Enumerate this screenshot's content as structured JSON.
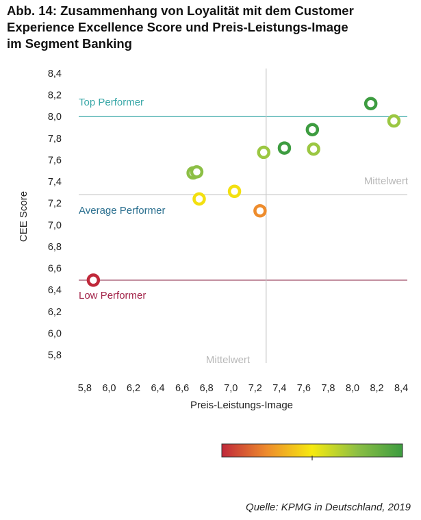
{
  "title_lines": [
    "Abb. 14: Zusammenhang von Loyalität mit dem Customer",
    "Experience Excellence Score und Preis-Leistungs-Image",
    "im Segment Banking"
  ],
  "source": "Quelle: KPMG in Deutschland, 2019",
  "chart_data": {
    "type": "scatter",
    "xlabel": "Preis-Leistungs-Image",
    "ylabel": "CEE Score",
    "xlim": [
      5.75,
      8.45
    ],
    "ylim": [
      5.8,
      8.4
    ],
    "x_ticks": [
      "5,8",
      "6,0",
      "6,2",
      "6,4",
      "6,6",
      "6,8",
      "7,0",
      "7,2",
      "7,4",
      "7,6",
      "7,8",
      "8,0",
      "8,2",
      "8,4"
    ],
    "y_ticks": [
      "8,4",
      "8,2",
      "8,0",
      "7,8",
      "7,6",
      "7,4",
      "7,2",
      "7,0",
      "6,8",
      "6,6",
      "6,4",
      "6,2",
      "6,0",
      "5,8"
    ],
    "grid": false,
    "reference_lines": [
      {
        "axis": "y",
        "value": 8.0,
        "label": "Top Performer",
        "color": "#3aa8a8"
      },
      {
        "axis": "y",
        "value": 7.28,
        "label": "Average Performer",
        "color": "#c8c8c8",
        "label_color": "#2a6f8f"
      },
      {
        "axis": "y",
        "value": 6.49,
        "label": "Low Performer",
        "color": "#8c2b4a",
        "label_color": "#a3254a"
      },
      {
        "axis": "x",
        "value": 7.29,
        "color": "#c8c8c8"
      }
    ],
    "mean_labels": {
      "y_mean": "Mittelwert",
      "x_mean": "Mittelwert"
    },
    "points": [
      {
        "x": 5.87,
        "y": 6.49,
        "color": "#c0283a"
      },
      {
        "x": 6.69,
        "y": 7.48,
        "color": "#8cbf45"
      },
      {
        "x": 6.72,
        "y": 7.49,
        "color": "#8cbf45"
      },
      {
        "x": 6.74,
        "y": 7.24,
        "color": "#f3e010"
      },
      {
        "x": 7.03,
        "y": 7.31,
        "color": "#f3e010"
      },
      {
        "x": 7.24,
        "y": 7.13,
        "color": "#ee8c2c"
      },
      {
        "x": 7.27,
        "y": 7.67,
        "color": "#9bc742"
      },
      {
        "x": 7.44,
        "y": 7.71,
        "color": "#3d9c40"
      },
      {
        "x": 7.67,
        "y": 7.88,
        "color": "#3d9c40"
      },
      {
        "x": 7.68,
        "y": 7.7,
        "color": "#9bc742"
      },
      {
        "x": 8.15,
        "y": 8.12,
        "color": "#3d9c40"
      },
      {
        "x": 8.34,
        "y": 7.96,
        "color": "#9bc742"
      }
    ],
    "color_scale": {
      "colors": [
        "#c0283a",
        "#ee8c2c",
        "#f6ea10",
        "#8cbf45",
        "#3d9c40"
      ],
      "marker_position": 0.5
    }
  }
}
